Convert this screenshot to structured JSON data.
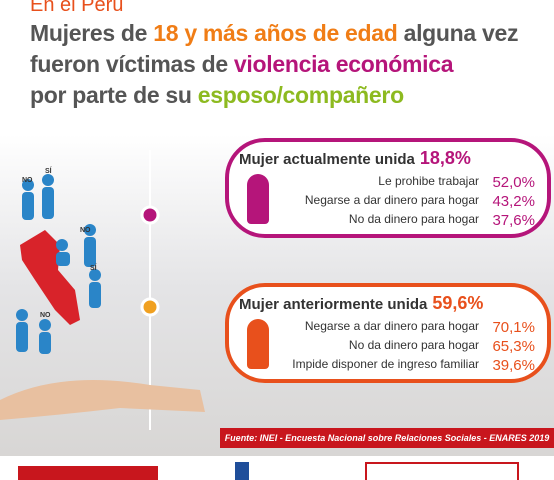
{
  "header": {
    "kicker": "En el Perú",
    "title_lines": [
      [
        {
          "text": "Mujeres de ",
          "tone": "dark"
        },
        {
          "text": "18 y más años de edad",
          "tone": "orange"
        },
        {
          "text": " alguna vez",
          "tone": "dark"
        }
      ],
      [
        {
          "text": "fueron víctimas de ",
          "tone": "dark"
        },
        {
          "text": "violencia económica",
          "tone": "magenta"
        }
      ],
      [
        {
          "text": "por parte de su ",
          "tone": "dark"
        },
        {
          "text": "esposo/compañero",
          "tone": "green"
        }
      ]
    ]
  },
  "icon_labels": [
    "NO",
    "SÍ",
    "NO",
    "SÍ",
    "NO"
  ],
  "panels": [
    {
      "title": "Mujer actualmente unida",
      "total": "18,8%",
      "color": "#b5157a",
      "items": [
        {
          "label": "Le prohibe trabajar",
          "value": "52,0%"
        },
        {
          "label": "Negarse a dar dinero para hogar",
          "value": "43,2%"
        },
        {
          "label": "No da dinero para hogar",
          "value": "37,6%"
        }
      ]
    },
    {
      "title": "Mujer anteriormente unida",
      "total": "59,6%",
      "color": "#e8501c",
      "items": [
        {
          "label": "Negarse a dar dinero para hogar",
          "value": "70,1%"
        },
        {
          "label": "No da dinero para hogar",
          "value": "65,3%"
        },
        {
          "label": "Impide disponer de ingreso familiar",
          "value": "39,6%"
        }
      ]
    }
  ],
  "source": "Fuente: INEI - Encuesta Nacional sobre Relaciones Sociales - ENARES 2019"
}
